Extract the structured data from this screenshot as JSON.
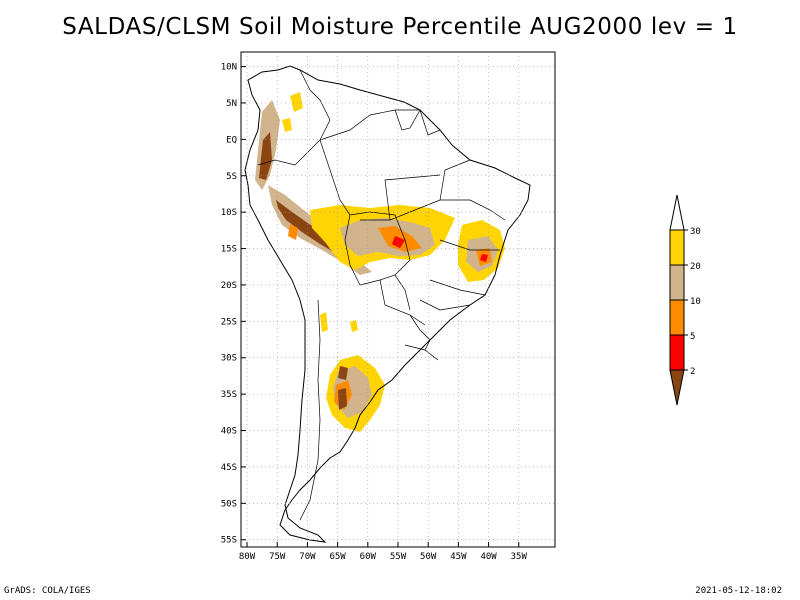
{
  "title": "SALDAS/CLSM Soil Moisture Percentile AUG2000 lev = 1",
  "footer": {
    "left": "GrADS: COLA/IGES",
    "right": "2021-05-12-18:02"
  },
  "map": {
    "lon_range": [
      -81,
      -29
    ],
    "lat_range": [
      -56,
      12
    ],
    "lon_ticks": [
      "80W",
      "75W",
      "70W",
      "65W",
      "60W",
      "55W",
      "50W",
      "45W",
      "40W",
      "35W"
    ],
    "lat_ticks": [
      "10N",
      "5N",
      "EQ",
      "5S",
      "10S",
      "15S",
      "20S",
      "25S",
      "30S",
      "35S",
      "40S",
      "45S",
      "50S",
      "55S"
    ],
    "gridlines": true
  },
  "legend": {
    "levels": [
      "30",
      "20",
      "10",
      "5",
      "2"
    ],
    "colors": {
      "above_30": "#ffffff",
      "20_30": "#ffd400",
      "10_20": "#d2b48c",
      "5_10": "#ff8c00",
      "2_5": "#ff0000",
      "below_2": "#8b4513"
    }
  }
}
